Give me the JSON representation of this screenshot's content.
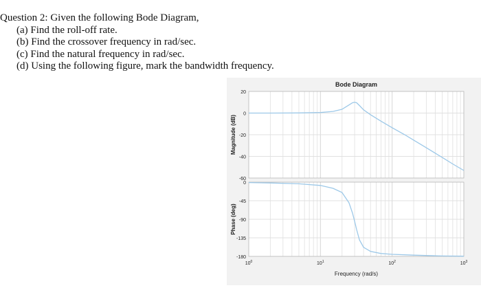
{
  "question": {
    "heading": "Question 2: Given the following Bode Diagram,",
    "items": [
      "(a) Find the roll-off rate.",
      "(b) Find the crossover frequency in rad/sec.",
      "(c) Find the natural frequency in rad/sec.",
      "(d) Using the following figure, mark the bandwidth frequency."
    ]
  },
  "chart_data": [
    {
      "type": "line",
      "title": "Bode Diagram",
      "xlabel": "Frequency (rad/s)",
      "ylabel": "Magnitude (dB)",
      "xscale": "log",
      "xlim": [
        1,
        1000
      ],
      "ylim": [
        -60,
        20
      ],
      "yticks": [
        "20",
        "0",
        "-20",
        "-40",
        "-60"
      ],
      "grid": true,
      "line_color": "#9cc8e8",
      "series": [
        {
          "x": [
            1,
            2,
            5,
            10,
            15,
            20,
            25,
            28,
            30,
            32,
            35,
            40,
            50,
            70,
            100,
            150,
            200,
            300,
            500,
            700,
            1000
          ],
          "values": [
            0,
            0,
            0.1,
            0.5,
            1.5,
            3.5,
            7.5,
            9.5,
            10,
            9.5,
            7.0,
            3.0,
            -1.5,
            -7.5,
            -13.5,
            -20,
            -25,
            -32,
            -41,
            -47,
            -53
          ]
        }
      ]
    },
    {
      "type": "line",
      "xlabel": "Frequency (rad/s)",
      "ylabel": "Phase (deg)",
      "xscale": "log",
      "xlim": [
        1,
        1000
      ],
      "ylim": [
        -180,
        0
      ],
      "yticks": [
        "0",
        "-45",
        "-90",
        "-135",
        "-180"
      ],
      "xticks": [
        {
          "value": 1,
          "base": "10",
          "exp": "0"
        },
        {
          "value": 10,
          "base": "10",
          "exp": "1"
        },
        {
          "value": 100,
          "base": "10",
          "exp": "2"
        },
        {
          "value": 1000,
          "base": "10",
          "exp": "3"
        }
      ],
      "grid": true,
      "line_color": "#9cc8e8",
      "series": [
        {
          "x": [
            1,
            2,
            5,
            10,
            15,
            20,
            25,
            28,
            30,
            32,
            35,
            40,
            50,
            70,
            100,
            200,
            500,
            1000
          ],
          "values": [
            -1,
            -2,
            -4,
            -8,
            -15,
            -25,
            -50,
            -75,
            -95,
            -115,
            -140,
            -158,
            -168,
            -173,
            -175,
            -177,
            -179,
            -179.5
          ]
        }
      ]
    }
  ]
}
